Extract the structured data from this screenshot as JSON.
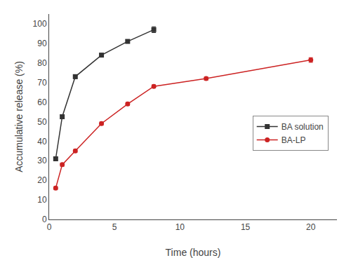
{
  "chart_data": {
    "type": "line",
    "x_label": "Time (hours)",
    "y_label": "Accumulative release (%)",
    "series": [
      {
        "name": "BA solution",
        "color": "#333333",
        "marker": "square",
        "line_style": "solid",
        "x": [
          0.5,
          1.0,
          2.0,
          4.0,
          6.0,
          8.0
        ],
        "values": [
          31.0,
          52.5,
          73.0,
          84.0,
          91.0,
          97.0
        ],
        "errors": [
          0.8,
          1.0,
          1.0,
          0.8,
          0.8,
          1.5
        ]
      },
      {
        "name": "BA-LP",
        "color": "#cc2222",
        "marker": "circle",
        "line_style": "solid",
        "x": [
          0.5,
          1.0,
          2.0,
          4.0,
          6.0,
          8.0,
          12.0,
          20.0
        ],
        "values": [
          16.0,
          28.0,
          35.0,
          49.0,
          59.0,
          68.0,
          72.0,
          81.5
        ],
        "errors": [
          0.8,
          0.8,
          0.8,
          0.8,
          0.8,
          0.8,
          0.8,
          1.2
        ]
      }
    ],
    "xlim": [
      0,
      22
    ],
    "ylim": [
      0,
      105
    ],
    "xticks": [
      0,
      5,
      10,
      15,
      20
    ],
    "yticks": [
      0,
      10,
      20,
      30,
      40,
      50,
      60,
      70,
      80,
      90,
      100
    ],
    "grid": false,
    "legend": "right"
  }
}
